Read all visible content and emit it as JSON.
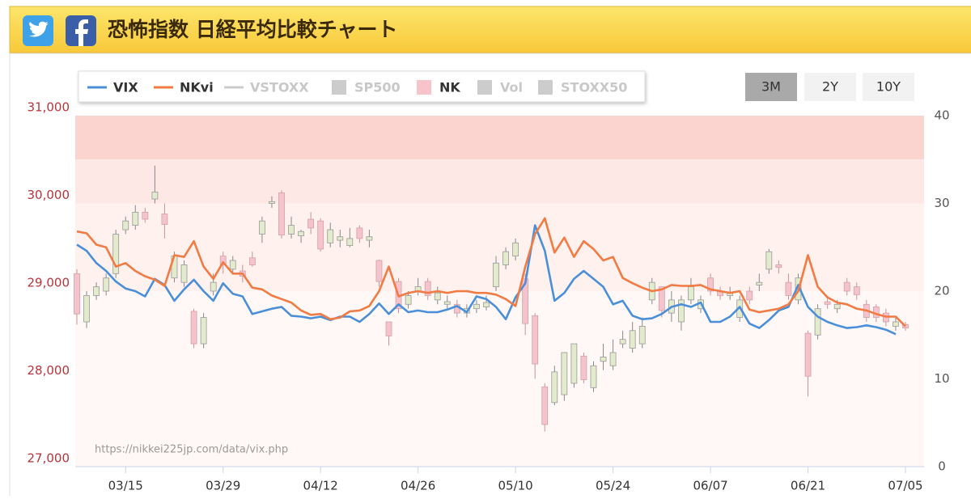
{
  "header": {
    "title": "恐怖指数 日経平均比較チャート"
  },
  "buttons": [
    {
      "label": "3M",
      "active": true
    },
    {
      "label": "2Y",
      "active": false
    },
    {
      "label": "10Y",
      "active": false
    }
  ],
  "chart_data": {
    "type": "line-candlestick",
    "watermark": "https://nikkei225jp.com/data/vix.php",
    "categories": [
      null,
      null,
      null,
      null,
      null,
      "03/15",
      null,
      null,
      null,
      null,
      null,
      null,
      null,
      null,
      null,
      "03/29",
      null,
      null,
      null,
      null,
      null,
      null,
      null,
      null,
      null,
      "04/12",
      null,
      null,
      null,
      null,
      null,
      null,
      null,
      null,
      null,
      "04/26",
      null,
      null,
      null,
      null,
      null,
      null,
      null,
      null,
      null,
      "05/10",
      null,
      null,
      null,
      null,
      null,
      null,
      null,
      null,
      null,
      "05/24",
      null,
      null,
      null,
      null,
      null,
      null,
      null,
      null,
      null,
      "06/07",
      null,
      null,
      null,
      null,
      null,
      null,
      null,
      null,
      null,
      "06/21",
      null,
      null,
      null,
      null,
      null,
      null,
      null,
      null,
      null,
      "07/05"
    ],
    "ylim": [
      27000,
      31000
    ],
    "yticks": [
      {
        "value": 27000,
        "label": "27,000"
      },
      {
        "value": 28000,
        "label": "28,000"
      },
      {
        "value": 29000,
        "label": "29,000"
      },
      {
        "value": 30000,
        "label": "30,000"
      },
      {
        "value": 31000,
        "label": "31,000"
      }
    ],
    "y2lim": [
      0,
      40
    ],
    "y2ticks": [
      0,
      10,
      20,
      30,
      40
    ],
    "bands": [
      {
        "from": 35,
        "to": 40,
        "color": "#fbd3cf"
      },
      {
        "from": 30,
        "to": 35,
        "color": "#fde8e5"
      },
      {
        "from": 20,
        "to": 30,
        "color": "#fef1ee"
      },
      {
        "from": 0,
        "to": 20,
        "color": "#fff8f6"
      }
    ],
    "series": [
      {
        "name": "VIX",
        "color": "#4a8fd8",
        "visible": true,
        "symbol": "line",
        "axis": "y2",
        "values": [
          25.3,
          24.6,
          23.2,
          22.3,
          21.1,
          20.3,
          20.0,
          19.4,
          21.4,
          20.7,
          18.9,
          20.2,
          21.3,
          20.0,
          18.9,
          20.9,
          19.7,
          19.4,
          17.4,
          17.7,
          18.0,
          18.2,
          17.2,
          17.1,
          16.9,
          17.1,
          16.7,
          17.1,
          17.1,
          16.5,
          17.4,
          18.6,
          17.4,
          18.5,
          17.6,
          17.8,
          17.6,
          17.6,
          17.9,
          18.3,
          17.6,
          19.4,
          19.1,
          18.2,
          16.8,
          19.3,
          20.9,
          27.5,
          24.6,
          18.9,
          19.8,
          21.4,
          22.3,
          21.4,
          20.5,
          18.5,
          18.9,
          17.2,
          16.8,
          16.9,
          17.4,
          18.2,
          18.5,
          18.2,
          18.7,
          16.5,
          16.5,
          17.1,
          18.2,
          16.3,
          15.8,
          16.7,
          17.8,
          18.2,
          20.7,
          18.2,
          17.1,
          16.5,
          16.1,
          15.8,
          15.9,
          16.1,
          15.9,
          15.6,
          15.1,
          null
        ]
      },
      {
        "name": "NKvi",
        "color": "#f27b43",
        "visible": true,
        "symbol": "line",
        "axis": "y2",
        "values": [
          26.8,
          26.6,
          25.3,
          25.0,
          22.8,
          23.2,
          22.3,
          21.7,
          21.3,
          20.6,
          24.1,
          23.9,
          25.7,
          22.8,
          21.4,
          23.3,
          22.0,
          22.0,
          20.4,
          20.2,
          19.5,
          19.1,
          18.7,
          17.8,
          17.3,
          17.4,
          16.8,
          17.0,
          17.7,
          17.8,
          18.3,
          20.0,
          22.8,
          19.4,
          19.8,
          20.0,
          19.8,
          20.0,
          19.8,
          20.0,
          20.0,
          19.8,
          19.8,
          19.6,
          19.1,
          18.3,
          22.8,
          26.5,
          28.3,
          24.4,
          26.1,
          23.9,
          25.7,
          24.8,
          23.5,
          23.9,
          21.5,
          20.9,
          20.4,
          20.0,
          20.2,
          20.7,
          20.6,
          20.6,
          20.7,
          20.2,
          20.0,
          19.8,
          20.0,
          17.9,
          17.6,
          17.8,
          18.0,
          18.5,
          20.0,
          24.1,
          20.5,
          19.3,
          18.7,
          18.5,
          18.0,
          17.8,
          17.4,
          17.1,
          17.1,
          16.0
        ]
      },
      {
        "name": "VSTOXX",
        "color": "#cccccc",
        "visible": false,
        "symbol": "line"
      },
      {
        "name": "SP500",
        "color": "#cccccc",
        "visible": false,
        "symbol": "box"
      },
      {
        "name": "NK",
        "color": "#f7c4cc",
        "visible": true,
        "symbol": "box",
        "type": "candlestick",
        "up_color": "#e3ebcd",
        "down_color": "#f5c3cb",
        "open": [
          29200,
          28650,
          28950,
          29000,
          29200,
          29700,
          29750,
          29900,
          30050,
          29880,
          29150,
          29100,
          28770,
          28400,
          29000,
          29400,
          29250,
          29230,
          29380,
          29650,
          30000,
          30120,
          29650,
          29630,
          29820,
          29800,
          29550,
          29580,
          29520,
          29720,
          29580,
          29350,
          28650,
          29110,
          28850,
          29000,
          29110,
          28900,
          28850,
          28850,
          28750,
          28800,
          28820,
          29050,
          29300,
          29400,
          29140,
          28720,
          27910,
          27730,
          27820,
          27950,
          28260,
          27900,
          28200,
          28150,
          28400,
          28350,
          28400,
          28900,
          29050,
          28750,
          28650,
          28900,
          28800,
          29150,
          29000,
          28950,
          28700,
          29000,
          29070,
          29250,
          29300,
          29100,
          28900,
          28520,
          28500,
          28880,
          28800,
          29100,
          29050,
          28850,
          28820,
          28750,
          28600,
          28620
        ],
        "high": [
          29250,
          29000,
          29100,
          29200,
          29700,
          29850,
          29980,
          29950,
          30430,
          30000,
          29450,
          29350,
          28800,
          28750,
          29200,
          29450,
          29400,
          29300,
          29450,
          29850,
          30080,
          30150,
          29850,
          29700,
          29900,
          29830,
          29780,
          29700,
          29720,
          29750,
          29700,
          29360,
          28650,
          29150,
          29000,
          29150,
          29150,
          29050,
          28950,
          28900,
          28850,
          28900,
          28950,
          29400,
          29500,
          29600,
          29200,
          28750,
          27950,
          28150,
          28300,
          28400,
          28300,
          28200,
          28400,
          28450,
          28550,
          28650,
          28700,
          29150,
          29050,
          29000,
          28950,
          29150,
          28950,
          29200,
          29050,
          29050,
          28950,
          29050,
          29200,
          29480,
          29350,
          29200,
          29200,
          28550,
          28850,
          28950,
          28900,
          29150,
          29100,
          28900,
          28850,
          28800,
          28700,
          28650
        ],
        "low": [
          28620,
          28580,
          28900,
          28950,
          29150,
          29650,
          29700,
          29780,
          30000,
          29600,
          29100,
          29050,
          28350,
          28350,
          28950,
          29200,
          29200,
          29100,
          29280,
          29550,
          29950,
          29600,
          29600,
          29550,
          29650,
          29450,
          29500,
          29500,
          29500,
          29550,
          29500,
          29050,
          28380,
          28750,
          28800,
          28950,
          28900,
          28850,
          28800,
          28700,
          28700,
          28750,
          28780,
          29000,
          29250,
          29350,
          28500,
          28000,
          27400,
          27700,
          27750,
          27900,
          27950,
          27850,
          28100,
          28100,
          28350,
          28300,
          28350,
          28850,
          28700,
          28650,
          28550,
          28850,
          28750,
          28950,
          28900,
          28900,
          28650,
          28850,
          29000,
          29200,
          29200,
          28900,
          28850,
          27800,
          28450,
          28800,
          28750,
          28950,
          28900,
          28650,
          28650,
          28600,
          28550,
          28550
        ],
        "close": [
          28740,
          28950,
          29050,
          29150,
          29650,
          29800,
          29900,
          29820,
          30130,
          29760,
          29400,
          29300,
          28400,
          28700,
          29100,
          29300,
          29350,
          29170,
          29300,
          29800,
          30020,
          29640,
          29750,
          29680,
          29720,
          29480,
          29700,
          29620,
          29600,
          29600,
          29620,
          29110,
          28490,
          28800,
          28950,
          29050,
          28950,
          28980,
          28880,
          28750,
          28800,
          28850,
          28870,
          29320,
          29450,
          29550,
          28630,
          28170,
          27480,
          28080,
          28300,
          28400,
          27990,
          28150,
          28250,
          28300,
          28450,
          28550,
          28600,
          29100,
          28780,
          28900,
          28900,
          29050,
          28900,
          29000,
          28950,
          28980,
          28900,
          28900,
          29100,
          29450,
          29270,
          28950,
          29150,
          28030,
          28800,
          28850,
          28850,
          29000,
          28960,
          28700,
          28700,
          28650,
          28650,
          28580
        ]
      },
      {
        "name": "Vol",
        "color": "#cccccc",
        "visible": false,
        "symbol": "box"
      },
      {
        "name": "STOXX50",
        "color": "#cccccc",
        "visible": false,
        "symbol": "box"
      }
    ]
  }
}
